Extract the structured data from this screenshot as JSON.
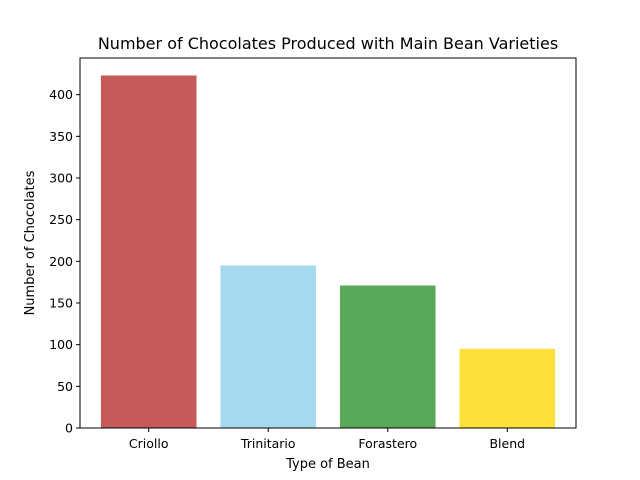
{
  "chart_data": {
    "type": "bar",
    "title": "Number of Chocolates Produced with Main Bean Varieties",
    "xlabel": "Type of Bean",
    "ylabel": "Number of Chocolates",
    "categories": [
      "Criollo",
      "Trinitario",
      "Forastero",
      "Blend"
    ],
    "values": [
      423,
      195,
      171,
      95
    ],
    "colors": [
      "#c55a5a",
      "#a5d9ef",
      "#5aa85a",
      "#ffe13c"
    ],
    "ylim": [
      0,
      444
    ],
    "yticks": [
      0,
      50,
      100,
      150,
      200,
      250,
      300,
      350,
      400
    ],
    "grid": false,
    "legend": "none"
  }
}
